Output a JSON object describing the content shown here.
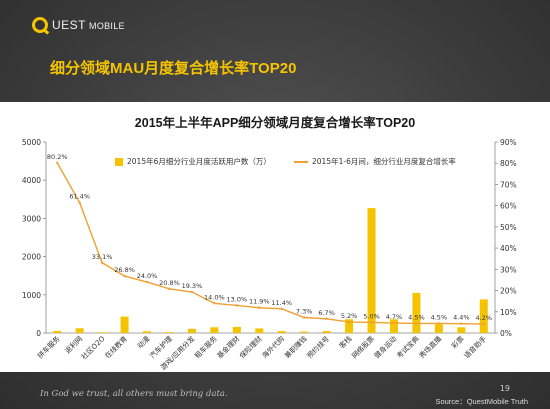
{
  "brand": {
    "logo_text": "UEST",
    "logo_sub": "MOBILE"
  },
  "headline": "细分领域MAU月度复合增长率TOP20",
  "colors": {
    "bar": "#f5c400",
    "line": "#f0a030",
    "headline": "#f5c400"
  },
  "chart_data": {
    "type": "bar",
    "title": "2015年上半年APP细分领域月度复合增长率TOP20",
    "categories": [
      "拼车服务",
      "返利网",
      "社区O2O",
      "在线教育",
      "动漫",
      "汽车护理",
      "游戏/应用分发",
      "租车服务",
      "基金理财",
      "保险理财",
      "海外代购",
      "兼职赚钱",
      "预约挂号",
      "客栈",
      "网络股票",
      "健身运动",
      "考试宝典",
      "秀场直播",
      "彩票",
      "语音助手"
    ],
    "series": [
      {
        "name": "2015年6月细分行业月度活跃用户数（万）",
        "type": "bar",
        "axis": "left",
        "values": [
          55,
          125,
          20,
          430,
          45,
          25,
          110,
          150,
          160,
          120,
          50,
          35,
          50,
          360,
          3270,
          360,
          1050,
          230,
          150,
          880
        ]
      },
      {
        "name": "2015年1-6月间，细分行业月度复合增长率",
        "type": "line",
        "axis": "right",
        "values": [
          80.2,
          61.4,
          33.1,
          26.8,
          24.0,
          20.8,
          19.3,
          14.0,
          13.0,
          11.9,
          11.4,
          7.3,
          6.7,
          5.2,
          5.0,
          4.7,
          4.5,
          4.5,
          4.4,
          4.2
        ],
        "labels": [
          "80.2%",
          "61.4%",
          "33.1%",
          "26.8%",
          "24.0%",
          "20.8%",
          "19.3%",
          "14.0%",
          "13.0%",
          "11.9%",
          "11.4%",
          "7.3%",
          "6.7%",
          "5.2%",
          "5.0%",
          "4.7%",
          "4.5%",
          "4.5%",
          "4.4%",
          "4.2%"
        ]
      }
    ],
    "ylim_left": [
      0,
      5000
    ],
    "yticks_left": [
      "0",
      "1000",
      "2000",
      "3000",
      "4000",
      "5000"
    ],
    "ylim_right": [
      0,
      90
    ],
    "yticks_right": [
      "0%",
      "10%",
      "20%",
      "30%",
      "40%",
      "50%",
      "60%",
      "70%",
      "80%",
      "90%"
    ],
    "legend_position": "top-center",
    "grid": false
  },
  "footer": {
    "motto": "In God we trust, all others must bring data.",
    "page": "19",
    "source": "Source：QuestMobile Truth"
  }
}
